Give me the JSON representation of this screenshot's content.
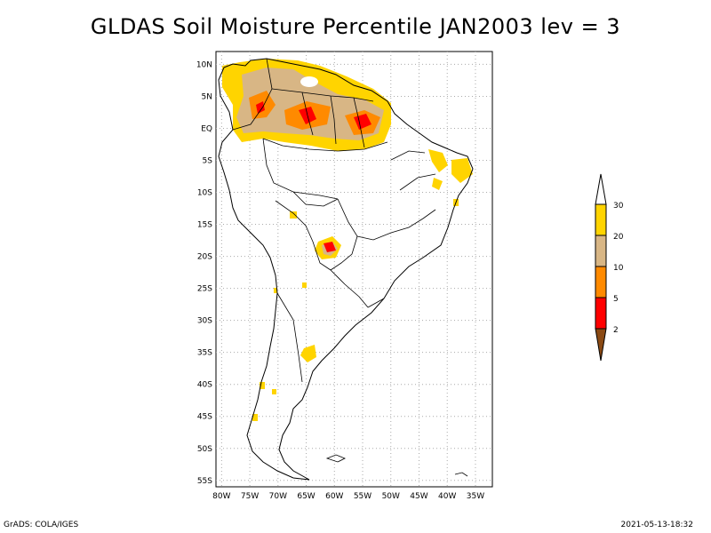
{
  "title": "GLDAS Soil Moisture Percentile JAN2003 lev = 3",
  "footer": {
    "left": "GrADS: COLA/IGES",
    "right": "2021-05-13-18:32"
  },
  "map": {
    "lon_range": [
      -81,
      -32
    ],
    "lat_range": [
      -56,
      12
    ],
    "x_ticks": [
      "80W",
      "75W",
      "70W",
      "65W",
      "60W",
      "55W",
      "50W",
      "45W",
      "40W",
      "35W"
    ],
    "x_tick_values": [
      -80,
      -75,
      -70,
      -65,
      -60,
      -55,
      -50,
      -45,
      -40,
      -35
    ],
    "y_ticks": [
      "10N",
      "5N",
      "EQ",
      "5S",
      "10S",
      "15S",
      "20S",
      "25S",
      "30S",
      "35S",
      "40S",
      "45S",
      "50S",
      "55S"
    ],
    "y_tick_values": [
      10,
      5,
      0,
      -5,
      -10,
      -15,
      -20,
      -25,
      -30,
      -35,
      -40,
      -45,
      -50,
      -55
    ],
    "grid": true
  },
  "legend": {
    "labels": [
      "30",
      "20",
      "10",
      "5",
      "2"
    ],
    "colors": {
      "above_30": "#ffffff",
      "20_30": "#ffd400",
      "10_20": "#d8b685",
      "5_10": "#ff8a00",
      "2_5": "#ff0000",
      "below_2": "#8b4a14"
    }
  }
}
